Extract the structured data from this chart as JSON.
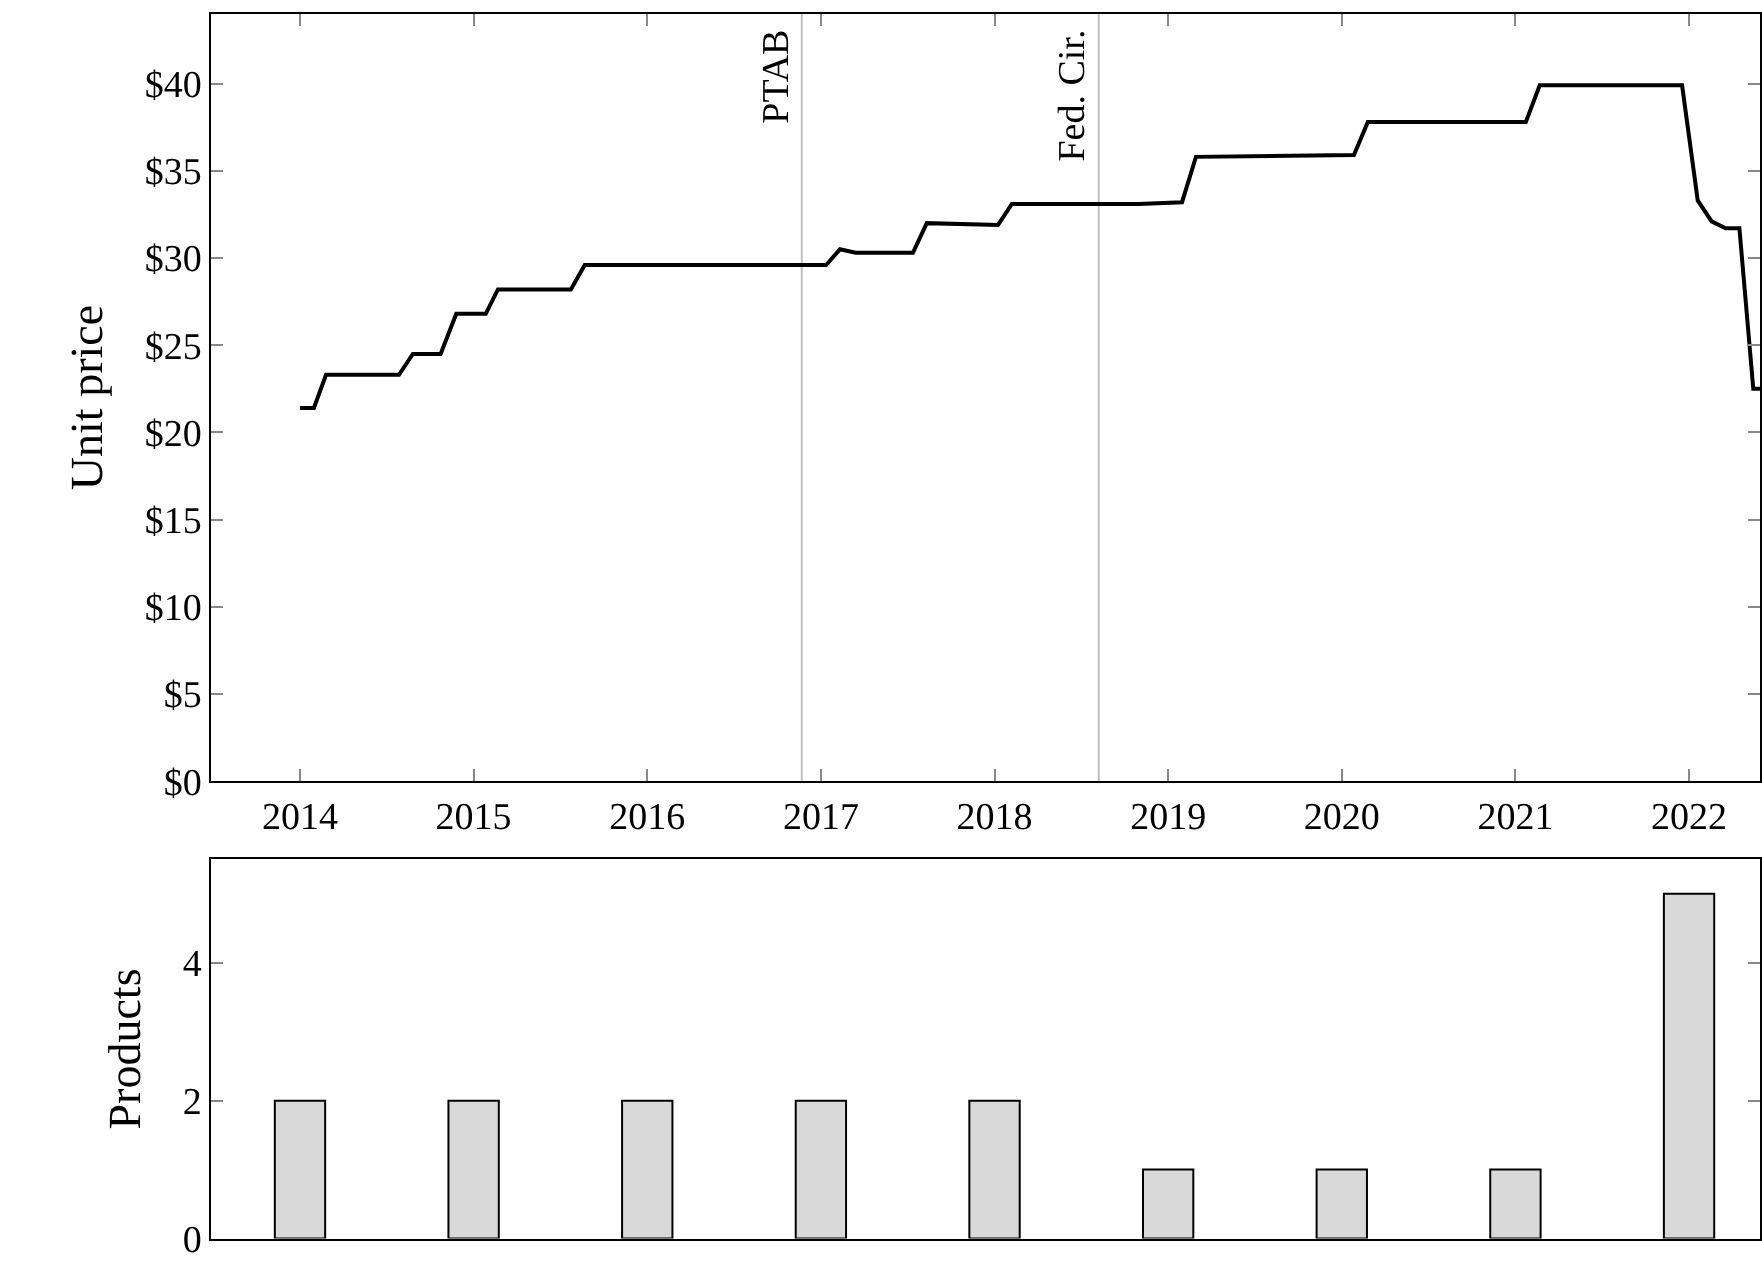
{
  "chart_data": [
    {
      "type": "line",
      "ylabel": "Unit price",
      "x": [
        2014.0,
        2014.08,
        2014.15,
        2014.57,
        2014.65,
        2014.81,
        2014.9,
        2015.07,
        2015.14,
        2015.56,
        2015.64,
        2016.38,
        2017.03,
        2017.11,
        2017.2,
        2017.53,
        2017.61,
        2018.02,
        2018.1,
        2018.83,
        2019.08,
        2019.16,
        2020.07,
        2020.15,
        2021.06,
        2021.14,
        2021.96,
        2022.05,
        2022.13,
        2022.21,
        2022.29,
        2022.37,
        2022.41
      ],
      "series": [
        {
          "color": "#000000",
          "values": [
            21.4,
            21.4,
            23.3,
            23.3,
            24.5,
            24.5,
            26.8,
            26.8,
            28.2,
            28.2,
            29.6,
            29.6,
            29.6,
            30.5,
            30.3,
            30.3,
            32.0,
            31.9,
            33.1,
            33.1,
            33.2,
            35.8,
            35.9,
            37.8,
            37.8,
            39.9,
            39.9,
            33.3,
            32.1,
            31.7,
            31.7,
            22.5,
            22.5
          ]
        }
      ],
      "xlim": [
        2013.49,
        2022.41
      ],
      "xticks": [
        2014,
        2015,
        2016,
        2017,
        2018,
        2019,
        2020,
        2021,
        2022
      ],
      "ylim": [
        0,
        44
      ],
      "yticks": [
        {
          "value": 0,
          "label": "$0"
        },
        {
          "value": 5,
          "label": "$5"
        },
        {
          "value": 10,
          "label": "$10"
        },
        {
          "value": 15,
          "label": "$15"
        },
        {
          "value": 20,
          "label": "$20"
        },
        {
          "value": 25,
          "label": "$25"
        },
        {
          "value": 30,
          "label": "$30"
        },
        {
          "value": 35,
          "label": "$35"
        },
        {
          "value": 40,
          "label": "$40"
        }
      ],
      "ref_lines": [
        {
          "axis": "x",
          "value": 2016.89,
          "label": "PTAB",
          "color": "#bfbfbf"
        },
        {
          "axis": "x",
          "value": 2018.6,
          "label": "Fed. Cir.",
          "color": "#bfbfbf"
        }
      ],
      "grid": false,
      "marker": "none",
      "line_style": "solid"
    },
    {
      "type": "bar",
      "ylabel": "Products",
      "x": [
        2014,
        2015,
        2016,
        2017,
        2018,
        2019,
        2020,
        2021,
        2022
      ],
      "series": [
        {
          "color": "#d9d9d9",
          "values": [
            2,
            2,
            2,
            2,
            2,
            1,
            1,
            1,
            5
          ]
        }
      ],
      "xlim": [
        2013.49,
        2022.41
      ],
      "ylim": [
        0,
        5.5
      ],
      "yticks": [
        0,
        2,
        4
      ],
      "tick_labels": "y",
      "grid": false
    }
  ]
}
